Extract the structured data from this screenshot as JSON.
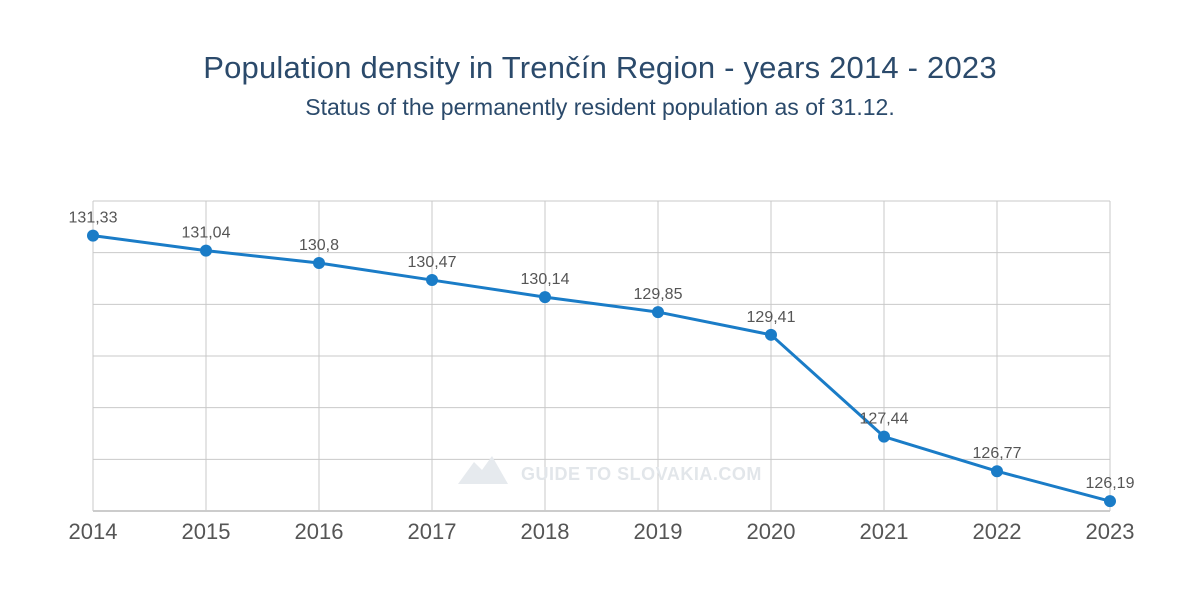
{
  "chart_data": {
    "type": "line",
    "title": "Population density in Trenčín Region - years 2014 - 2023",
    "subtitle": "Status of the permanently resident population as of 31.12.",
    "xlabel": "",
    "ylabel": "",
    "categories": [
      "2014",
      "2015",
      "2016",
      "2017",
      "2018",
      "2019",
      "2020",
      "2021",
      "2022",
      "2023"
    ],
    "series": [
      {
        "values": [
          131.33,
          131.04,
          130.8,
          130.47,
          130.14,
          129.85,
          129.41,
          127.44,
          126.77,
          126.19
        ],
        "labels": [
          "131,33",
          "131,04",
          "130,8",
          "130,47",
          "130,14",
          "129,85",
          "129,41",
          "127,44",
          "126,77",
          "126,19"
        ]
      }
    ],
    "ylim": [
      126.0,
      132.0
    ],
    "y_gridlines": 6,
    "grid": true,
    "legend": "none",
    "watermark": "GUIDE TO SLOVAKIA.COM",
    "colors": {
      "series": "#1a7cc7",
      "grid": "#c9c9c9",
      "text": "#555555",
      "title": "#2b4a6b"
    }
  }
}
